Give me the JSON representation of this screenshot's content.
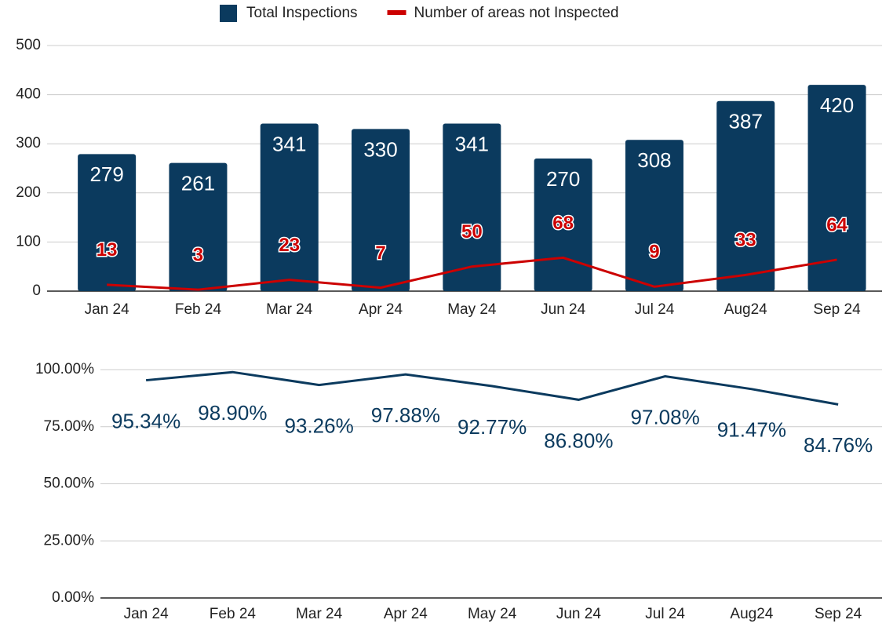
{
  "chart_data": [
    {
      "type": "bar",
      "categories": [
        "Jan 24",
        "Feb 24",
        "Mar 24",
        "Apr 24",
        "May 24",
        "Jun 24",
        "Jul 24",
        "Aug24",
        "Sep 24"
      ],
      "series": [
        {
          "name": "Total Inspections",
          "type": "bar",
          "color": "#0b3a5e",
          "values": [
            279,
            261,
            341,
            330,
            341,
            270,
            308,
            387,
            420
          ]
        },
        {
          "name": "Number of areas not Inspected",
          "type": "line",
          "color": "#cc0000",
          "values": [
            13,
            3,
            23,
            7,
            50,
            68,
            9,
            33,
            64
          ]
        }
      ],
      "ylim": [
        0,
        500
      ],
      "yticks": [
        0,
        100,
        200,
        300,
        400,
        500
      ],
      "grid": true,
      "legend": "top"
    },
    {
      "type": "line",
      "categories": [
        "Jan 24",
        "Feb 24",
        "Mar 24",
        "Apr 24",
        "May 24",
        "Jun 24",
        "Jul 24",
        "Aug24",
        "Sep 24"
      ],
      "series": [
        {
          "color": "#0b3a5e",
          "values": [
            95.34,
            98.9,
            93.26,
            97.88,
            92.77,
            86.8,
            97.08,
            91.47,
            84.76
          ],
          "value_labels": [
            "95.34%",
            "98.90%",
            "93.26%",
            "97.88%",
            "92.77%",
            "86.80%",
            "97.08%",
            "91.47%",
            "84.76%"
          ]
        }
      ],
      "ylim": [
        0,
        100
      ],
      "yticks": [
        {
          "value": 0,
          "label": "0.00%"
        },
        {
          "value": 25,
          "label": "25.00%"
        },
        {
          "value": 50,
          "label": "50.00%"
        },
        {
          "value": 75,
          "label": "75.00%"
        },
        {
          "value": 100,
          "label": "100.00%"
        }
      ],
      "grid": true
    }
  ]
}
